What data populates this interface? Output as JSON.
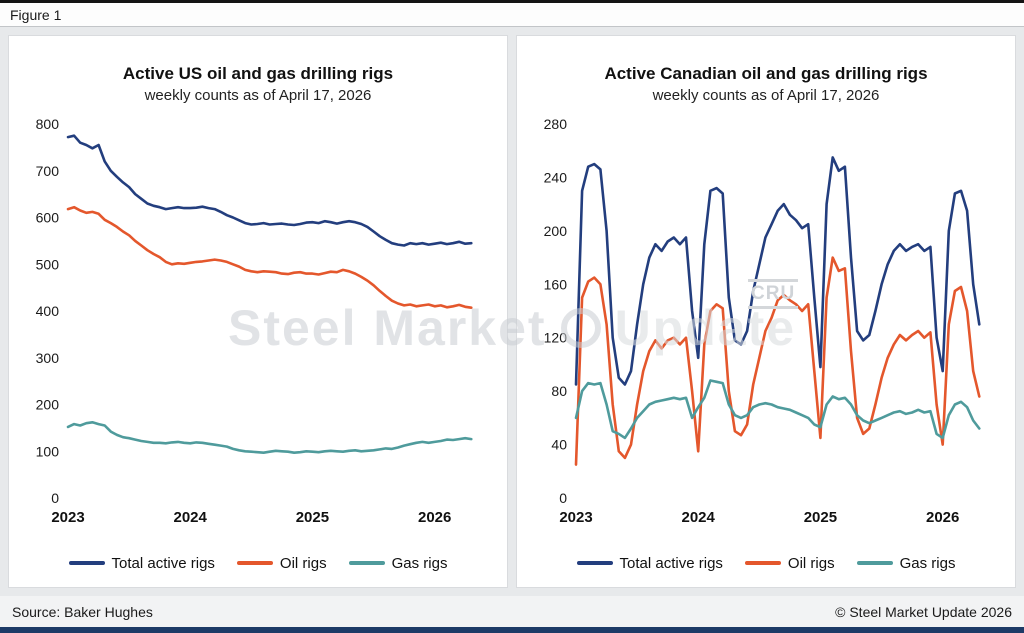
{
  "figure_label": "Figure 1",
  "footer": {
    "source": "Source: Baker Hughes",
    "copyright": "© Steel Market Update 2026"
  },
  "watermark": {
    "part1": "Steel Market",
    "part2": "Update",
    "cru": "CRU"
  },
  "chart_data": [
    {
      "type": "line",
      "title": "Active US oil and gas drilling rigs",
      "subtitle": "weekly counts as of April 17, 2026",
      "xlabel": "",
      "ylabel": "",
      "grid": false,
      "legend_position": "bottom",
      "xlim": [
        2023.0,
        2026.42
      ],
      "x_start": 2023.0,
      "x_end": 2026.3,
      "ylim": [
        0,
        800
      ],
      "yticks": [
        0,
        100,
        200,
        300,
        400,
        500,
        600,
        700,
        800
      ],
      "xticks": [
        2023,
        2024,
        2025,
        2026
      ],
      "series": [
        {
          "name": "Total active rigs",
          "color": "#233e7e",
          "values": [
            772,
            775,
            760,
            755,
            748,
            755,
            720,
            700,
            687,
            675,
            665,
            650,
            640,
            630,
            625,
            622,
            618,
            620,
            622,
            620,
            620,
            621,
            623,
            620,
            618,
            612,
            605,
            600,
            594,
            588,
            585,
            586,
            588,
            585,
            586,
            587,
            585,
            584,
            586,
            589,
            590,
            588,
            592,
            590,
            587,
            590,
            592,
            590,
            586,
            580,
            570,
            560,
            552,
            545,
            542,
            540,
            545,
            543,
            545,
            542,
            544,
            546,
            543,
            545,
            548,
            544,
            545
          ]
        },
        {
          "name": "Oil rigs",
          "color": "#e4572c",
          "values": [
            618,
            622,
            615,
            610,
            612,
            608,
            595,
            588,
            580,
            570,
            562,
            550,
            540,
            530,
            522,
            515,
            505,
            500,
            502,
            501,
            503,
            505,
            506,
            508,
            510,
            508,
            505,
            500,
            495,
            488,
            485,
            483,
            485,
            484,
            483,
            480,
            479,
            482,
            483,
            480,
            480,
            478,
            481,
            484,
            483,
            488,
            485,
            480,
            473,
            465,
            455,
            443,
            432,
            422,
            416,
            412,
            414,
            410,
            412,
            414,
            410,
            412,
            408,
            410,
            413,
            409,
            407
          ]
        },
        {
          "name": "Gas rigs",
          "color": "#4f9b9c",
          "values": [
            152,
            158,
            155,
            160,
            162,
            158,
            155,
            142,
            135,
            130,
            128,
            125,
            122,
            120,
            118,
            118,
            117,
            119,
            120,
            118,
            117,
            119,
            118,
            116,
            114,
            112,
            110,
            105,
            102,
            100,
            99,
            98,
            97,
            99,
            101,
            100,
            99,
            97,
            98,
            100,
            99,
            98,
            100,
            101,
            100,
            99,
            101,
            102,
            100,
            101,
            102,
            104,
            106,
            105,
            108,
            112,
            115,
            118,
            120,
            118,
            120,
            122,
            125,
            124,
            126,
            128,
            126
          ]
        }
      ]
    },
    {
      "type": "line",
      "title": "Active Canadian oil and gas drilling rigs",
      "subtitle": "weekly counts as of April 17, 2026",
      "xlabel": "",
      "ylabel": "",
      "grid": false,
      "legend_position": "bottom",
      "xlim": [
        2023.0,
        2026.42
      ],
      "x_start": 2023.0,
      "x_end": 2026.3,
      "ylim": [
        0,
        280
      ],
      "yticks": [
        0,
        40,
        80,
        120,
        160,
        200,
        240,
        280
      ],
      "xticks": [
        2023,
        2024,
        2025,
        2026
      ],
      "series": [
        {
          "name": "Total active rigs",
          "color": "#233e7e",
          "values": [
            85,
            230,
            248,
            250,
            246,
            200,
            120,
            90,
            85,
            95,
            130,
            160,
            180,
            190,
            185,
            192,
            195,
            190,
            195,
            140,
            105,
            190,
            230,
            232,
            228,
            150,
            118,
            115,
            125,
            155,
            175,
            195,
            205,
            215,
            220,
            212,
            208,
            202,
            205,
            150,
            98,
            220,
            255,
            245,
            248,
            180,
            125,
            118,
            122,
            140,
            160,
            175,
            185,
            190,
            185,
            188,
            190,
            185,
            188,
            120,
            95,
            200,
            228,
            230,
            215,
            160,
            130
          ]
        },
        {
          "name": "Oil rigs",
          "color": "#e4572c",
          "values": [
            25,
            150,
            162,
            165,
            160,
            130,
            70,
            35,
            30,
            40,
            70,
            95,
            110,
            118,
            112,
            118,
            120,
            115,
            120,
            80,
            35,
            115,
            140,
            145,
            142,
            80,
            50,
            47,
            55,
            85,
            105,
            125,
            135,
            148,
            152,
            148,
            145,
            140,
            145,
            95,
            45,
            150,
            180,
            170,
            172,
            110,
            60,
            48,
            52,
            70,
            90,
            105,
            115,
            122,
            118,
            122,
            125,
            120,
            124,
            70,
            40,
            130,
            155,
            158,
            140,
            95,
            76
          ]
        },
        {
          "name": "Gas rigs",
          "color": "#4f9b9c",
          "values": [
            60,
            80,
            86,
            85,
            86,
            70,
            50,
            48,
            45,
            52,
            60,
            65,
            70,
            72,
            73,
            74,
            75,
            74,
            75,
            60,
            68,
            75,
            88,
            87,
            86,
            70,
            62,
            60,
            62,
            68,
            70,
            71,
            70,
            68,
            67,
            66,
            64,
            62,
            60,
            55,
            53,
            70,
            76,
            74,
            75,
            70,
            62,
            58,
            56,
            58,
            60,
            62,
            64,
            65,
            63,
            64,
            66,
            64,
            65,
            48,
            45,
            62,
            70,
            72,
            68,
            58,
            52
          ]
        }
      ]
    }
  ]
}
